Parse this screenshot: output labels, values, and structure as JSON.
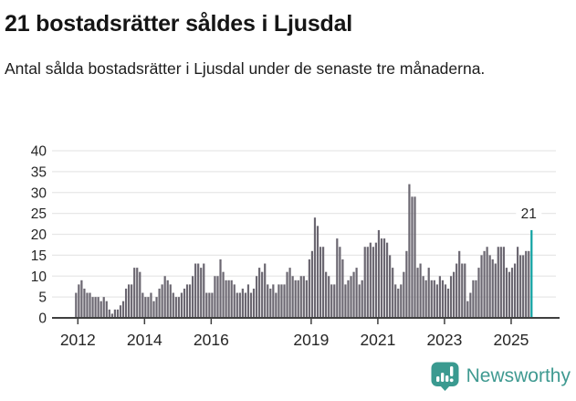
{
  "header": {
    "title": "21 bostadsrätter såldes i Ljusdal",
    "subtitle": "Antal sålda bostadsrätter i Ljusdal under de senaste tre månaderna."
  },
  "chart_data": {
    "type": "bar",
    "title": "21 bostadsrätter såldes i Ljusdal",
    "xlabel": "",
    "ylabel": "",
    "ylim": [
      0,
      40
    ],
    "yticks": [
      0,
      5,
      10,
      15,
      20,
      25,
      30,
      35,
      40
    ],
    "xtick_years": [
      2012,
      2014,
      2016,
      2019,
      2021,
      2023,
      2025
    ],
    "grid": "horizontal",
    "x_start": "2012-01",
    "x_end": "2025-09",
    "frequency": "monthly",
    "series": [
      {
        "name": "Antal sålda bostadsrätter, rullande tre månader",
        "values": [
          6,
          8,
          9,
          7,
          6,
          6,
          5,
          5,
          5,
          4,
          5,
          4,
          2,
          1,
          2,
          2,
          3,
          4,
          7,
          8,
          8,
          12,
          12,
          11,
          6,
          5,
          5,
          6,
          4,
          5,
          7,
          8,
          10,
          9,
          8,
          6,
          5,
          5,
          6,
          7,
          8,
          8,
          10,
          13,
          13,
          12,
          13,
          6,
          6,
          6,
          10,
          10,
          14,
          11,
          9,
          9,
          9,
          8,
          6,
          6,
          7,
          6,
          8,
          6,
          7,
          10,
          12,
          11,
          13,
          8,
          7,
          8,
          6,
          8,
          8,
          8,
          11,
          12,
          10,
          9,
          9,
          10,
          10,
          9,
          14,
          16,
          24,
          22,
          17,
          17,
          11,
          10,
          8,
          8,
          19,
          17,
          14,
          8,
          9,
          10,
          11,
          12,
          8,
          9,
          17,
          17,
          18,
          17,
          18,
          21,
          19,
          19,
          18,
          15,
          12,
          8,
          7,
          8,
          11,
          16,
          32,
          29,
          29,
          12,
          13,
          10,
          9,
          12,
          9,
          9,
          8,
          10,
          9,
          8,
          7,
          10,
          11,
          13,
          16,
          13,
          13,
          4,
          6,
          9,
          9,
          12,
          15,
          16,
          17,
          15,
          14,
          13,
          17,
          17,
          17,
          12,
          11,
          12,
          13,
          17,
          15,
          15,
          16,
          16,
          21
        ]
      }
    ],
    "highlight": {
      "index": 164,
      "value": 21,
      "label": "21"
    },
    "colors": {
      "bar": "#6b6771",
      "highlight": "#0fa2a2",
      "gridline": "#e7e7e7",
      "axis": "#3f3f3f",
      "tick_text": "#262626"
    },
    "legend": "none"
  },
  "footer": {
    "brand": "Newsworthy"
  }
}
